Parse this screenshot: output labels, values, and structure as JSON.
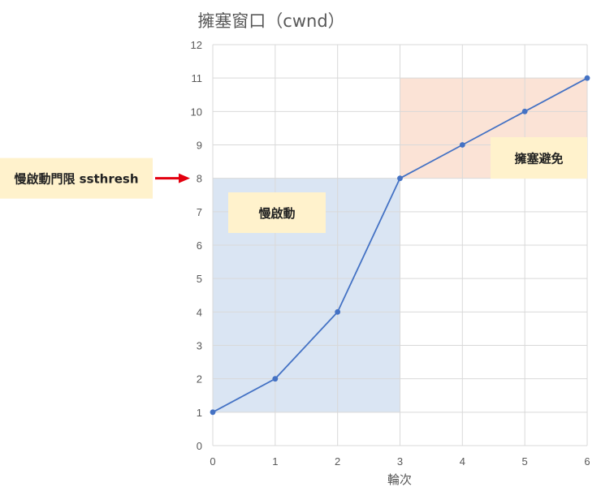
{
  "chart_data": {
    "type": "line",
    "title": "擁塞窗口（cwnd）",
    "xlabel": "輪次",
    "ylabel": "",
    "x": [
      0,
      1,
      2,
      3,
      4,
      5,
      6
    ],
    "series": [
      {
        "values": [
          1,
          2,
          4,
          8,
          9,
          10,
          11
        ],
        "color": "#4472c4"
      }
    ],
    "xlim": [
      0,
      6
    ],
    "ylim": [
      0,
      12
    ],
    "xticks": [
      0,
      1,
      2,
      3,
      4,
      5,
      6
    ],
    "yticks": [
      0,
      1,
      2,
      3,
      4,
      5,
      6,
      7,
      8,
      9,
      10,
      11,
      12
    ],
    "grid": true,
    "regions": [
      {
        "label": "慢啟動",
        "x_range": [
          0,
          3
        ],
        "y_range": [
          1,
          8
        ],
        "color": "#dae5f3"
      },
      {
        "label": "擁塞避免",
        "x_range": [
          3,
          6
        ],
        "y_range": [
          8,
          11
        ],
        "color": "#fbe3d6"
      }
    ],
    "annotations": [
      {
        "label": "慢啟動門限 ssthresh",
        "points_to_y": 8,
        "arrow_color": "#e3000f"
      }
    ]
  },
  "colors": {
    "label_box": "#fff2cc",
    "grid": "#d9d9d9",
    "text": "#595959"
  }
}
